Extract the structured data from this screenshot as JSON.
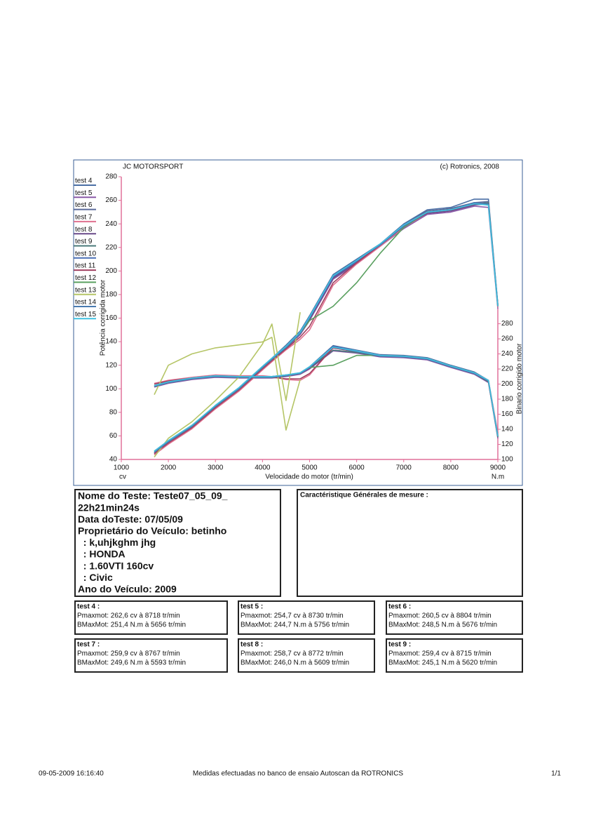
{
  "chart_data": {
    "type": "line",
    "title": "JC MOTORSPORT",
    "copyright": "(c) Rotronics, 2008",
    "xlabel": "Velocidade do motor (tr/min)",
    "ylabel": "Potência corrigida motor",
    "y2label": "Binario corrigido motor",
    "yunit": "cv",
    "y2unit": "N.m",
    "x": [
      1700,
      2000,
      2500,
      3000,
      3500,
      4000,
      4200,
      4500,
      4800,
      5000,
      5500,
      6000,
      6500,
      7000,
      7500,
      8000,
      8500,
      8800,
      9000
    ],
    "xlim": [
      1000,
      9000
    ],
    "xticks": [
      1000,
      2000,
      3000,
      4000,
      5000,
      6000,
      7000,
      8000,
      9000
    ],
    "ylim": [
      40,
      280
    ],
    "yticks": [
      40,
      60,
      80,
      100,
      120,
      140,
      160,
      180,
      200,
      220,
      240,
      260,
      280
    ],
    "y2lim": [
      100,
      475
    ],
    "y2ticks": [
      100,
      120,
      140,
      160,
      180,
      200,
      220,
      240,
      260,
      280
    ],
    "series": [
      {
        "name": "test 4",
        "color": "#4a6fa5",
        "values": [
          45,
          55,
          68,
          86,
          101,
          119,
          126,
          137,
          149,
          162,
          197,
          210,
          223,
          240,
          252,
          254,
          261,
          261,
          172
        ],
        "torque": [
          198,
          203,
          208,
          211,
          210,
          210,
          210,
          212,
          215,
          223,
          251,
          245,
          239,
          238,
          235,
          225,
          216,
          205,
          132
        ]
      },
      {
        "name": "test 5",
        "color": "#8a5aa8",
        "values": [
          46,
          54,
          67,
          84,
          99,
          117,
          124,
          134,
          146,
          158,
          193,
          206,
          221,
          236,
          248,
          250,
          255,
          254,
          168
        ],
        "torque": [
          196,
          201,
          206,
          209,
          208,
          208,
          208,
          210,
          213,
          220,
          244,
          241,
          236,
          235,
          232,
          222,
          213,
          202,
          128
        ]
      },
      {
        "name": "test 6",
        "color": "#5a6a9a",
        "values": [
          47,
          56,
          69,
          85,
          100,
          118,
          125,
          136,
          148,
          160,
          196,
          209,
          222,
          239,
          251,
          253,
          258,
          259,
          171
        ],
        "torque": [
          197,
          202,
          207,
          210,
          209,
          209,
          209,
          211,
          214,
          222,
          248,
          243,
          237,
          236,
          233,
          223,
          214,
          204,
          131
        ]
      },
      {
        "name": "test 7",
        "color": "#e0708f",
        "values": [
          44,
          53,
          66,
          83,
          98,
          116,
          123,
          133,
          142,
          150,
          188,
          206,
          221,
          237,
          249,
          251,
          257,
          258,
          169
        ],
        "torque": [
          201,
          205,
          209,
          212,
          211,
          211,
          210,
          206,
          205,
          212,
          249,
          244,
          238,
          237,
          234,
          224,
          215,
          205,
          135
        ]
      },
      {
        "name": "test 8",
        "color": "#6a4a8a",
        "values": [
          45,
          55,
          68,
          85,
          100,
          118,
          125,
          135,
          147,
          159,
          194,
          207,
          222,
          238,
          249,
          251,
          256,
          257,
          170
        ],
        "torque": [
          198,
          203,
          208,
          211,
          210,
          210,
          210,
          212,
          214,
          221,
          245,
          242,
          237,
          236,
          233,
          223,
          214,
          203,
          130
        ]
      },
      {
        "name": "test 9",
        "color": "#4a7a7a",
        "values": [
          46,
          55,
          68,
          85,
          100,
          118,
          125,
          135,
          147,
          160,
          195,
          208,
          222,
          238,
          250,
          252,
          257,
          258,
          171
        ],
        "torque": [
          197,
          202,
          207,
          210,
          209,
          209,
          209,
          211,
          214,
          222,
          245,
          242,
          237,
          236,
          233,
          223,
          214,
          203,
          130
        ]
      },
      {
        "name": "test 10",
        "color": "#4a6fb5",
        "values": [
          46,
          55,
          68,
          85,
          100,
          118,
          125,
          135,
          147,
          160,
          195,
          208,
          222,
          238,
          250,
          252,
          258,
          256,
          170
        ],
        "torque": [
          197,
          202,
          207,
          210,
          209,
          209,
          209,
          211,
          214,
          222,
          250,
          244,
          238,
          237,
          234,
          224,
          215,
          204,
          130
        ]
      },
      {
        "name": "test 11",
        "color": "#a04060",
        "values": [
          45,
          54,
          67,
          84,
          99,
          117,
          124,
          134,
          144,
          153,
          190,
          207,
          222,
          238,
          250,
          252,
          257,
          257,
          170
        ],
        "torque": [
          200,
          204,
          208,
          211,
          210,
          210,
          209,
          207,
          207,
          214,
          248,
          243,
          237,
          236,
          233,
          223,
          214,
          204,
          132
        ]
      },
      {
        "name": "test 12",
        "color": "#5aa060",
        "values": [
          46,
          55,
          68,
          85,
          100,
          118,
          125,
          135,
          147,
          158,
          170,
          190,
          215,
          237,
          250,
          252,
          257,
          257,
          170
        ],
        "torque": [
          197,
          202,
          207,
          210,
          209,
          209,
          209,
          211,
          214,
          222,
          225,
          238,
          238,
          237,
          234,
          224,
          215,
          204,
          130
        ]
      },
      {
        "name": "test 13",
        "color": "#b5c566",
        "values": [
          42,
          58,
          72,
          90,
          110,
          138,
          155,
          90,
          165,
          null,
          null,
          null,
          null,
          null,
          null,
          null,
          null,
          null,
          null
        ],
        "torque": [
          186,
          225,
          240,
          248,
          252,
          256,
          262,
          139,
          206,
          null,
          null,
          null,
          null,
          null,
          null,
          null,
          null,
          null,
          null
        ]
      },
      {
        "name": "test 14",
        "color": "#4a7ab0",
        "values": [
          46,
          55,
          68,
          85,
          100,
          118,
          125,
          135,
          147,
          160,
          196,
          209,
          222,
          238,
          250,
          252,
          258,
          257,
          171
        ],
        "torque": [
          197,
          202,
          207,
          210,
          209,
          209,
          209,
          211,
          214,
          222,
          249,
          243,
          237,
          236,
          233,
          223,
          214,
          204,
          131
        ]
      },
      {
        "name": "test 15",
        "color": "#40c0e0",
        "values": [
          47,
          56,
          69,
          86,
          101,
          119,
          126,
          136,
          148,
          161,
          196,
          209,
          223,
          239,
          250,
          252,
          257,
          256,
          170
        ],
        "torque": [
          198,
          203,
          208,
          211,
          210,
          210,
          210,
          212,
          215,
          223,
          249,
          244,
          238,
          237,
          234,
          224,
          215,
          205,
          131
        ]
      }
    ]
  },
  "info": {
    "lines": [
      "Nome do Teste: Teste07_05_09_",
      "22h21min24s",
      "Data doTeste: 07/05/09",
      "Proprietário do Veículo: betinho",
      "  : k,uhjkghm jhg",
      "  : HONDA",
      "  : 1.60VTI 160cv",
      "  : Civic",
      "Ano do Veículo: 2009"
    ],
    "characteristics_title": "Caractéristique Générales de mesure :"
  },
  "tests": [
    {
      "title": "test 4 :",
      "pmax": "Pmaxmot: 262,6 cv à 8718 tr/min",
      "bmax": "BMaxMot: 251,4 N.m à 5656 tr/min"
    },
    {
      "title": "test 5 :",
      "pmax": "Pmaxmot: 254,7 cv à 8730 tr/min",
      "bmax": "BMaxMot: 244,7 N.m à 5756 tr/min"
    },
    {
      "title": "test 6 :",
      "pmax": "Pmaxmot: 260,5 cv à 8804 tr/min",
      "bmax": "BMaxMot: 248,5 N.m à 5676 tr/min"
    },
    {
      "title": "test 7 :",
      "pmax": "Pmaxmot: 259,9 cv à 8767 tr/min",
      "bmax": "BMaxMot: 249,6 N.m à 5593 tr/min"
    },
    {
      "title": "test 8 :",
      "pmax": "Pmaxmot: 258,7 cv à 8772 tr/min",
      "bmax": "BMaxMot: 246,0 N.m à 5609 tr/min"
    },
    {
      "title": "test 9 :",
      "pmax": "Pmaxmot: 259,4 cv à 8715 tr/min",
      "bmax": "BMaxMot: 245,1 N.m à 5620 tr/min"
    }
  ],
  "footer": {
    "date": "09-05-2009 16:16:40",
    "note": "Medidas efectuadas no banco de ensaio Autoscan da ROTRONICS",
    "page": "1/1"
  }
}
